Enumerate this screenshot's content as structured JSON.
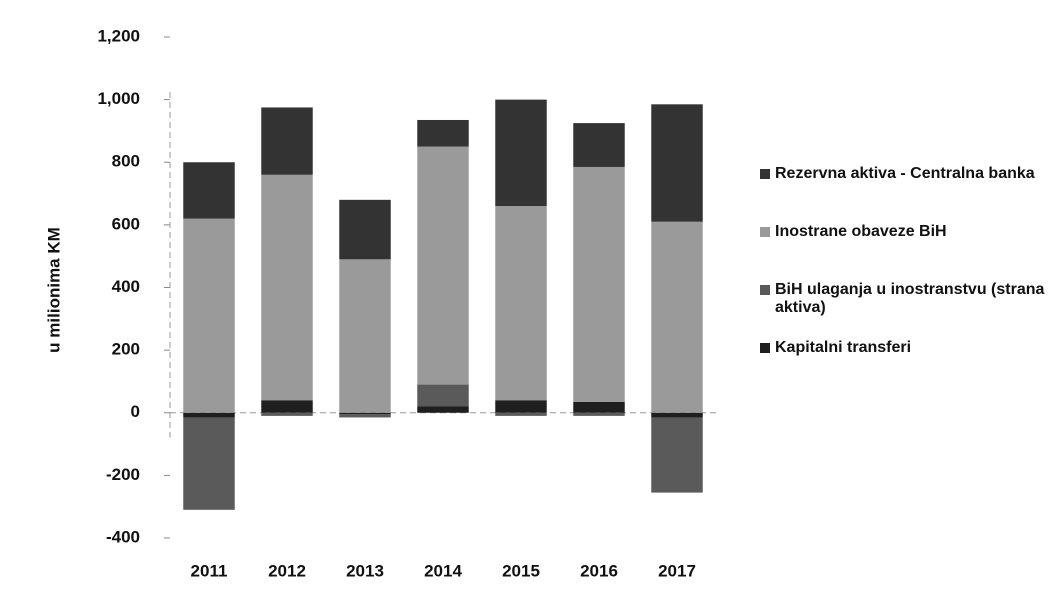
{
  "chart_data": {
    "type": "stacked_bar",
    "y_label": "u milionima KM",
    "categories": [
      "2011",
      "2012",
      "2013",
      "2014",
      "2015",
      "2016",
      "2017"
    ],
    "series": [
      {
        "name": "Kapitalni transferi",
        "color": "#1f1f1f",
        "values": [
          -15,
          40,
          -5,
          20,
          40,
          35,
          -15
        ]
      },
      {
        "name": "BiH ulaganja u inostranstvu (strana aktiva)",
        "color": "#5a5a5a",
        "values": [
          -295,
          -10,
          -10,
          70,
          -10,
          -10,
          -240
        ]
      },
      {
        "name": "Inostrane obaveze BiH",
        "color": "#9a9a9a",
        "values": [
          620,
          720,
          490,
          760,
          620,
          750,
          610
        ]
      },
      {
        "name": "Rezervna aktiva - Centralna banka",
        "color": "#333333",
        "values": [
          180,
          215,
          190,
          85,
          340,
          140,
          375
        ]
      }
    ],
    "ylim": [
      -400,
      1200
    ],
    "yticks": [
      -400,
      -200,
      0,
      200,
      400,
      600,
      800,
      {
        "value": 1000,
        "label": "1,000"
      },
      {
        "value": 1200,
        "label": "1,200"
      }
    ],
    "legend": "right"
  }
}
